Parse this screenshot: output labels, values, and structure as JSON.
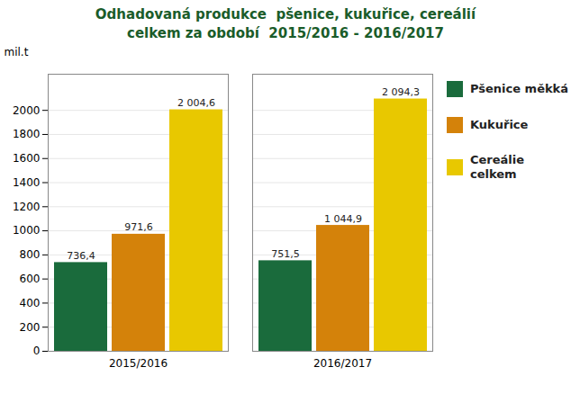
{
  "chart_data": {
    "type": "bar",
    "title": "Odhadovaná produkce  pšenice, kukuřice, cereálií\ncelkem za období  2015/2016 - 2016/2017",
    "ylabel": "mil.t",
    "categories": [
      "2015/2016",
      "2016/2017"
    ],
    "series": [
      {
        "name": "Pšenice měkká",
        "color": "#1a6b3c",
        "values": [
          736.4,
          751.5
        ],
        "value_labels": [
          "736,4",
          "751,5"
        ]
      },
      {
        "name": "Kukuřice",
        "color": "#d4820a",
        "values": [
          971.6,
          1044.9
        ],
        "value_labels": [
          "971,6",
          "1 044,9"
        ]
      },
      {
        "name": "Cereálie\ncelkem",
        "color": "#e8c800",
        "values": [
          2004.6,
          2094.3
        ],
        "value_labels": [
          "2 004,6",
          "2 094,3"
        ]
      }
    ],
    "ylim": [
      0,
      2300
    ],
    "yticks": [
      0,
      200,
      400,
      600,
      800,
      1000,
      1200,
      1400,
      1600,
      1800,
      2000
    ],
    "grid": true,
    "data_labels": true,
    "legend": "right"
  }
}
